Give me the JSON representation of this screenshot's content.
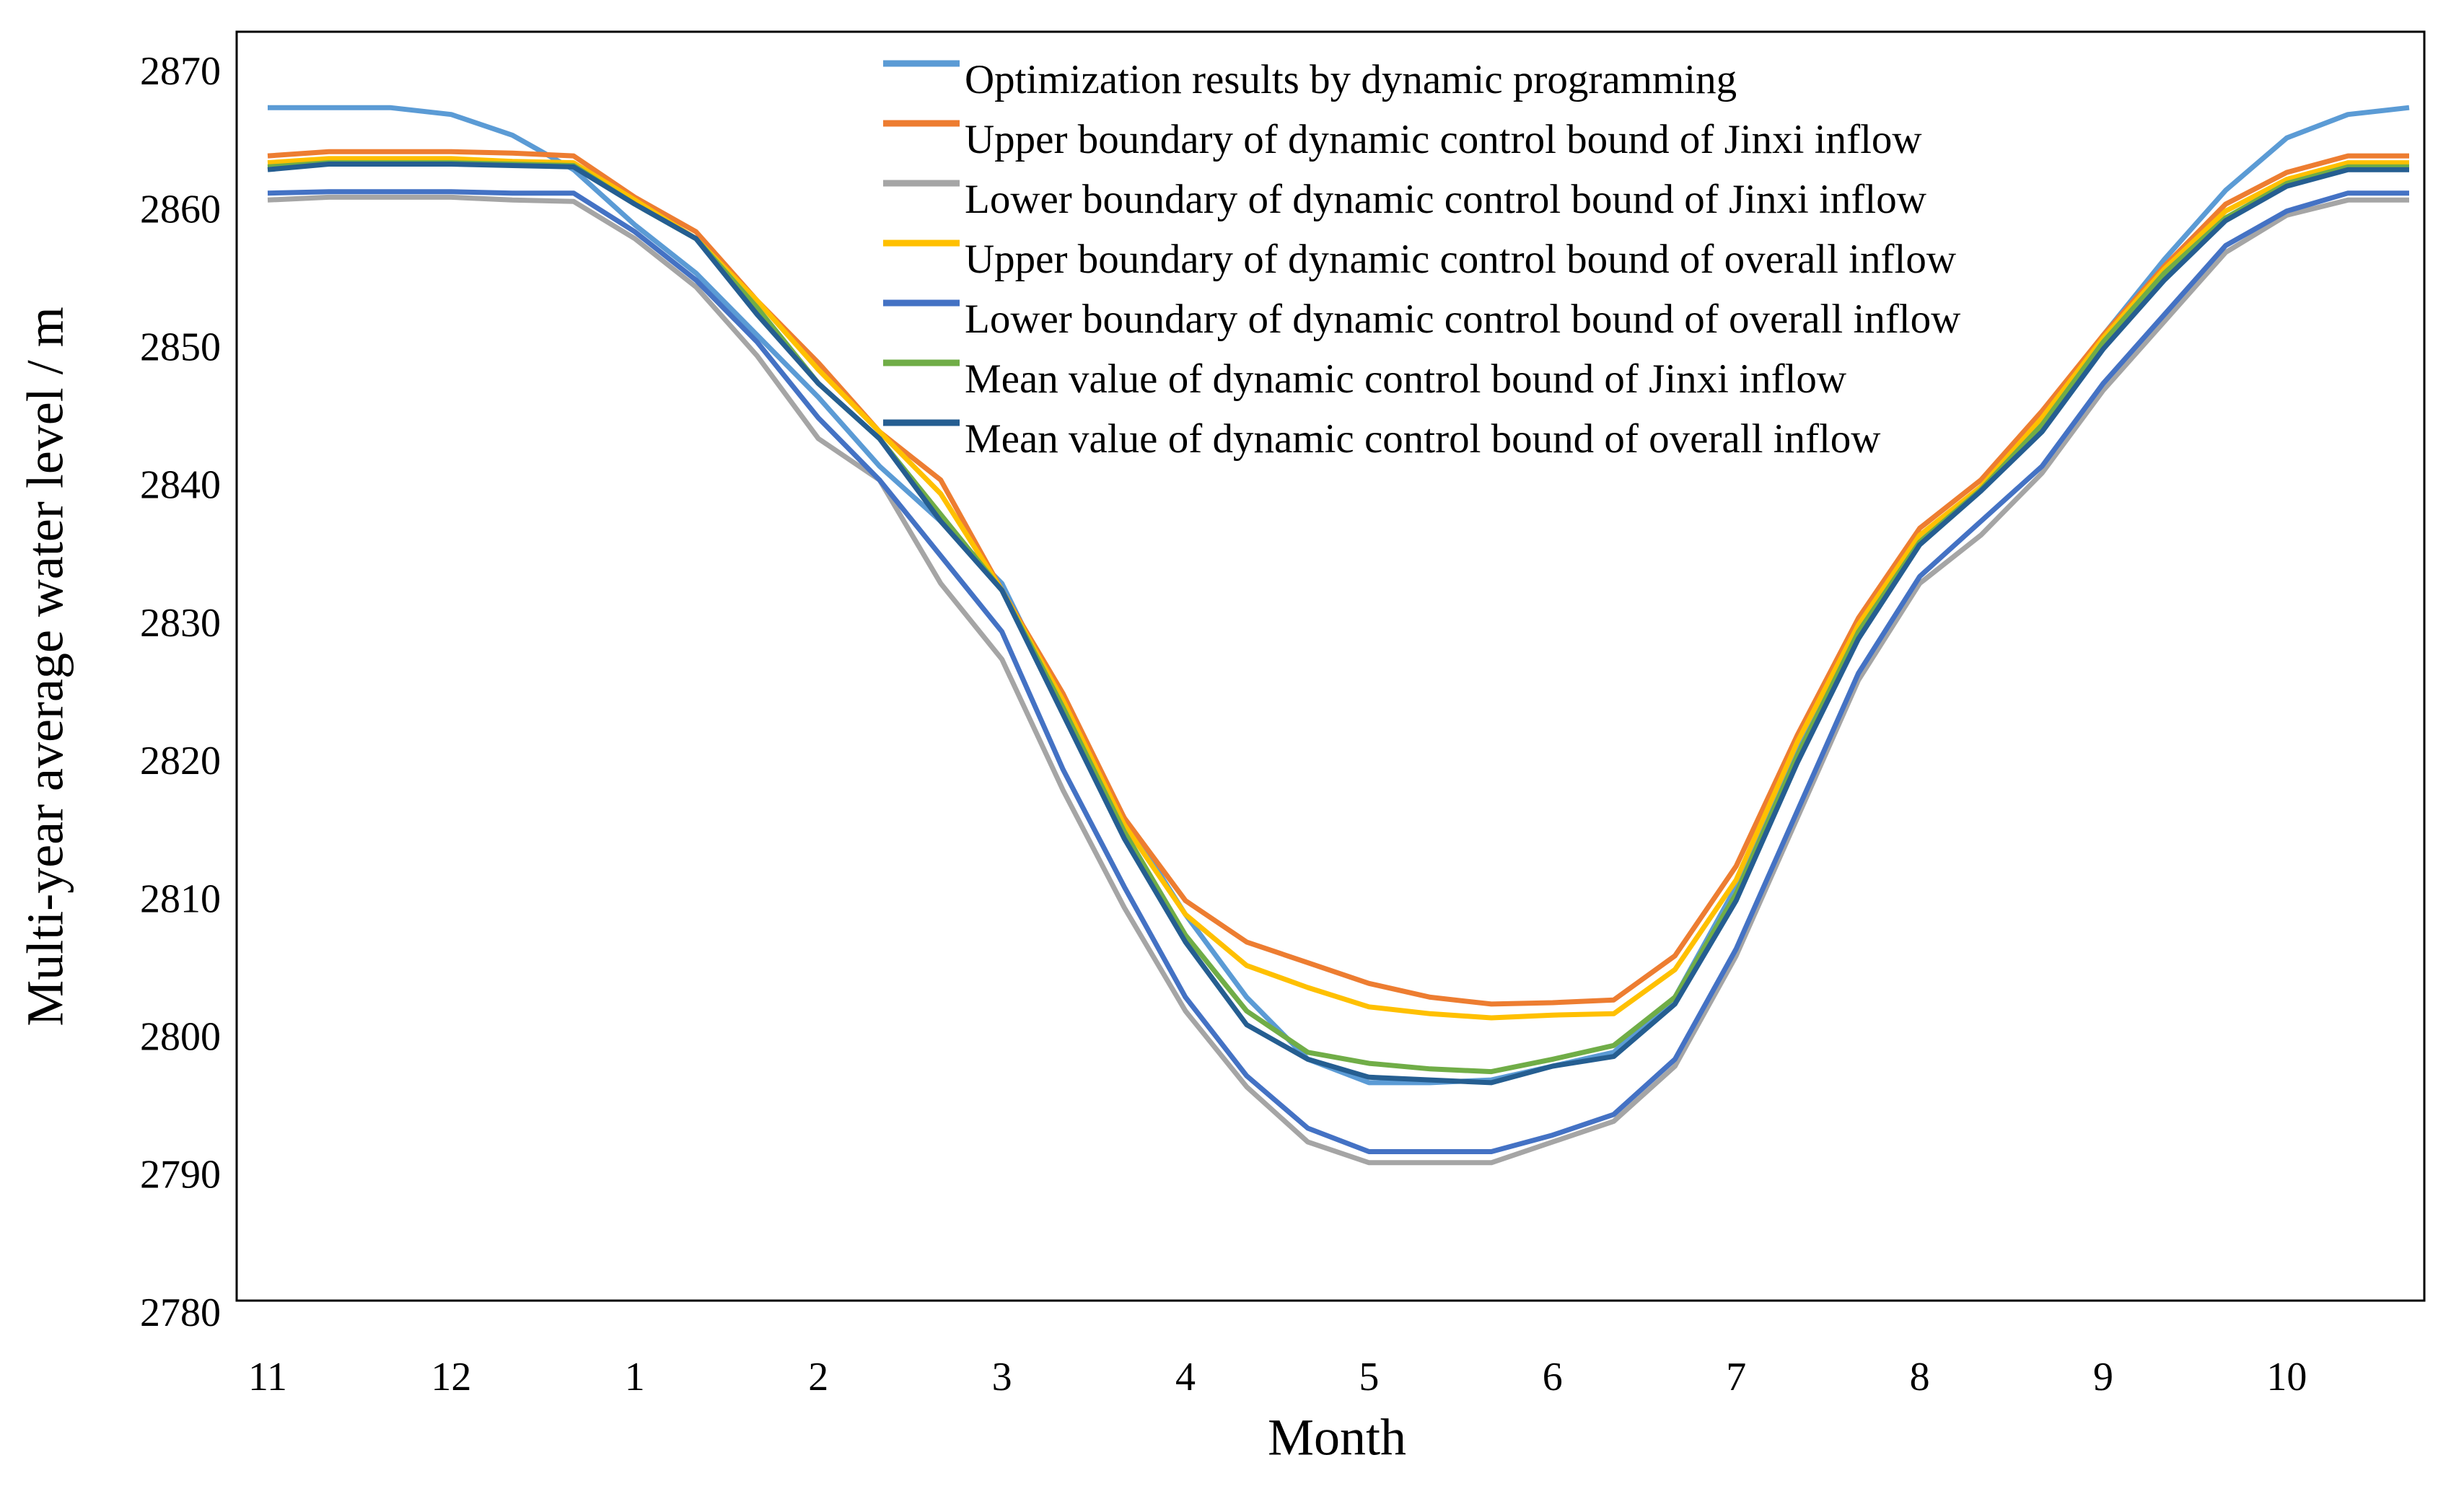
{
  "chart_data": {
    "type": "line",
    "xlabel": "Month",
    "ylabel": "Multi-year average water level / m",
    "categories": [
      "11",
      null,
      null,
      "12",
      null,
      null,
      "1",
      null,
      null,
      "2",
      null,
      null,
      "3",
      null,
      null,
      "4",
      null,
      null,
      "5",
      null,
      null,
      "6",
      null,
      null,
      "7",
      null,
      null,
      "8",
      null,
      null,
      "9",
      null,
      null,
      "10",
      null,
      null
    ],
    "ylim": [
      2780,
      2872
    ],
    "yticks": [
      2780,
      2790,
      2800,
      2810,
      2820,
      2830,
      2840,
      2850,
      2860,
      2870
    ],
    "grid": false,
    "legend": "top",
    "series": [
      {
        "name": "Optimization results by dynamic programming",
        "color": "#5b9bd5",
        "values": [
          2866.5,
          2866.5,
          2866.5,
          2866,
          2864.5,
          2862,
          2858,
          2854.5,
          2850,
          2845.5,
          2840.5,
          2836.5,
          2832,
          2823,
          2815,
          2808,
          2802,
          2797.5,
          2795.8,
          2795.8,
          2796,
          2797,
          2798,
          2802,
          2810,
          2820,
          2828,
          2835,
          2839,
          2844,
          2850,
          2855.5,
          2860.5,
          2864.3,
          2866,
          2866.5
        ]
      },
      {
        "name": "Upper boundary of dynamic control bound of Jinxi inflow",
        "color": "#ed7d31",
        "values": [
          2863,
          2863.3,
          2863.3,
          2863.3,
          2863.2,
          2863,
          2860,
          2857.5,
          2852.5,
          2848,
          2843,
          2839.5,
          2831.5,
          2824,
          2815,
          2809,
          2806,
          2804.5,
          2803,
          2802,
          2801.5,
          2801.6,
          2801.8,
          2805,
          2811.5,
          2821,
          2829.5,
          2836,
          2839.5,
          2844.5,
          2850,
          2855,
          2859.5,
          2861.8,
          2863,
          2863
        ]
      },
      {
        "name": "Lower boundary of dynamic control bound of Jinxi inflow",
        "color": "#a5a5a5",
        "values": [
          2859.8,
          2860,
          2860,
          2860,
          2859.8,
          2859.7,
          2857,
          2853.5,
          2848.5,
          2842.5,
          2839.5,
          2832,
          2826.5,
          2817,
          2808.5,
          2801,
          2795.5,
          2791.5,
          2790,
          2790,
          2790,
          2791.5,
          2793,
          2797,
          2805,
          2815,
          2825,
          2832,
          2835.5,
          2840,
          2846,
          2851,
          2856,
          2858.7,
          2859.8,
          2859.8
        ]
      },
      {
        "name": "Upper boundary of dynamic control bound of overall inflow",
        "color": "#ffc000",
        "values": [
          2862.5,
          2862.8,
          2862.8,
          2862.8,
          2862.6,
          2862.5,
          2859.8,
          2857,
          2852.5,
          2847.5,
          2843,
          2838.5,
          2831.5,
          2823.5,
          2814.5,
          2808,
          2804.3,
          2802.7,
          2801.3,
          2800.8,
          2800.5,
          2800.7,
          2800.8,
          2804,
          2810.5,
          2820.5,
          2829,
          2835.5,
          2839,
          2844,
          2849.8,
          2854.8,
          2859,
          2861.3,
          2862.5,
          2862.5
        ]
      },
      {
        "name": "Lower boundary of dynamic control bound of overall inflow",
        "color": "#4472c4",
        "values": [
          2860.3,
          2860.4,
          2860.4,
          2860.4,
          2860.3,
          2860.3,
          2857.5,
          2854,
          2849.5,
          2844,
          2839.5,
          2834,
          2828.5,
          2818.5,
          2810,
          2802,
          2796.3,
          2792.5,
          2790.8,
          2790.8,
          2790.8,
          2792,
          2793.5,
          2797.5,
          2805.5,
          2815.5,
          2825.5,
          2832.5,
          2836.5,
          2840.5,
          2846.5,
          2851.5,
          2856.5,
          2859,
          2860.3,
          2860.3
        ]
      },
      {
        "name": "Mean value of dynamic control bound of Jinxi inflow",
        "color": "#70ad47",
        "values": [
          2862.2,
          2862.5,
          2862.5,
          2862.5,
          2862.4,
          2862.3,
          2859.5,
          2857,
          2852,
          2846.5,
          2842.5,
          2837,
          2831.5,
          2823,
          2814,
          2806.5,
          2801,
          2798,
          2797.2,
          2796.8,
          2796.6,
          2797.5,
          2798.5,
          2802,
          2809.5,
          2819.5,
          2828.5,
          2835,
          2838.8,
          2843.5,
          2849.5,
          2854.5,
          2858.5,
          2861,
          2862.2,
          2862.2
        ]
      },
      {
        "name": "Mean value of dynamic control bound of overall inflow",
        "color": "#255e91",
        "values": [
          2862,
          2862.4,
          2862.4,
          2862.4,
          2862.3,
          2862.2,
          2859.5,
          2857,
          2851.5,
          2846.5,
          2842.5,
          2836.5,
          2831.5,
          2822.5,
          2813.5,
          2806,
          2800,
          2797.5,
          2796.2,
          2796,
          2795.8,
          2797,
          2797.7,
          2801.5,
          2809,
          2819,
          2828,
          2834.8,
          2838.7,
          2843,
          2849,
          2854,
          2858.3,
          2860.8,
          2862,
          2862
        ]
      }
    ]
  }
}
